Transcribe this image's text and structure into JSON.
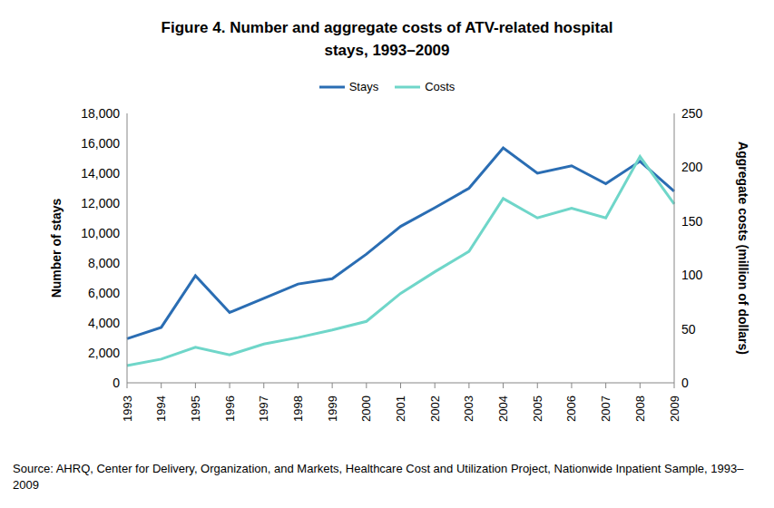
{
  "chart_data": {
    "type": "line",
    "title": "Figure 4. Number and aggregate costs of ATV-related hospital stays, 1993–2009",
    "source": "Source: AHRQ, Center for Delivery, Organization, and Markets, Healthcare Cost and Utilization Project, Nationwide Inpatient Sample, 1993–2009",
    "y_label": "Number of stays",
    "y2_label": "Aggregate costs (million of dollars)",
    "categories": [
      "1993",
      "1994",
      "1995",
      "1996",
      "1997",
      "1998",
      "1999",
      "2000",
      "2001",
      "2002",
      "2003",
      "2004",
      "2005",
      "2006",
      "2007",
      "2008",
      "2009"
    ],
    "series": [
      {
        "name": "Stays",
        "color": "#2a6db3",
        "values": [
          2950,
          3700,
          7150,
          4700,
          5650,
          6600,
          6950,
          8600,
          10450,
          11700,
          13000,
          15700,
          14000,
          14500,
          13300,
          14800,
          12800
        ]
      },
      {
        "name": "Costs",
        "color": "#6fd6c9",
        "axis": "y2",
        "values": [
          16,
          22,
          33,
          26,
          36,
          42,
          49,
          57,
          83,
          103,
          122,
          171,
          153,
          162,
          153,
          210,
          166
        ]
      }
    ],
    "ylim": [
      0,
      18000
    ],
    "yticks": [
      0,
      {
        "value": 2000,
        "label": "2,000"
      },
      {
        "value": 4000,
        "label": "4,000"
      },
      {
        "value": 6000,
        "label": "6,000"
      },
      {
        "value": 8000,
        "label": "8,000"
      },
      {
        "value": 10000,
        "label": "10,000"
      },
      {
        "value": 12000,
        "label": "12,000"
      },
      {
        "value": 14000,
        "label": "14,000"
      },
      {
        "value": 16000,
        "label": "16,000"
      },
      {
        "value": 18000,
        "label": "18,000"
      }
    ],
    "y2lim": [
      0,
      250
    ],
    "y2ticks": [
      0,
      50,
      100,
      150,
      200,
      250
    ],
    "legend": "top",
    "grid": false
  }
}
